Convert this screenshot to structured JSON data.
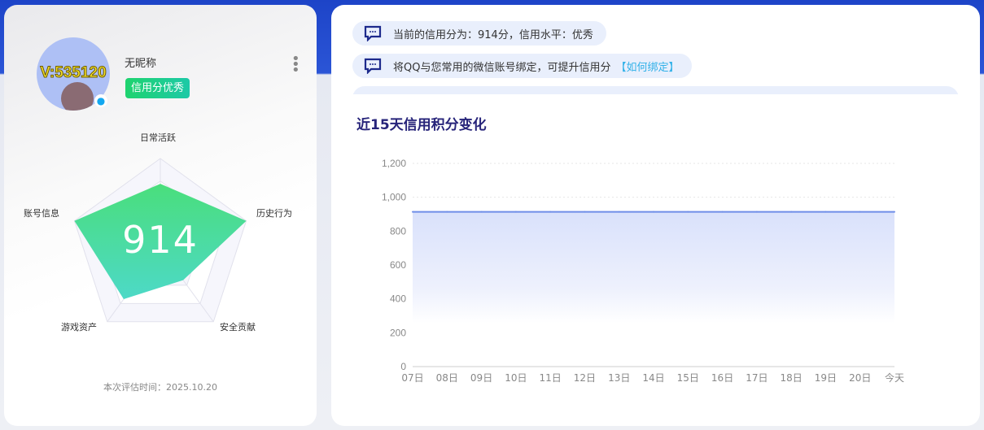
{
  "profile": {
    "avatar_text": "V:535120",
    "nickname": "无昵称",
    "badge": "信用分优秀",
    "more_icon": "more-vertical-icon",
    "qq_icon": "qq-penguin-icon"
  },
  "radar": {
    "score": "914",
    "axes": [
      {
        "label": "日常活跃",
        "value": 0.72
      },
      {
        "label": "历史行为",
        "value": 1.0
      },
      {
        "label": "安全贡献",
        "value": 0.43
      },
      {
        "label": "游戏资产",
        "value": 0.69
      },
      {
        "label": "账号信息",
        "value": 1.0
      }
    ],
    "fill_colors": [
      "#4ade7c",
      "#4dd9c7"
    ]
  },
  "eval_time": "本次评估时间：2025.10.20",
  "messages": [
    {
      "text": "当前的信用分为：914分，信用水平：优秀"
    },
    {
      "text": "将QQ与您常用的微信账号绑定，可提升信用分",
      "link": "【如何绑定】"
    }
  ],
  "chart_data": {
    "type": "area",
    "title": "近15天信用积分变化",
    "categories": [
      "07日",
      "08日",
      "09日",
      "10日",
      "11日",
      "12日",
      "13日",
      "14日",
      "15日",
      "16日",
      "17日",
      "18日",
      "19日",
      "20日",
      "今天"
    ],
    "values": [
      914,
      914,
      914,
      914,
      914,
      914,
      914,
      914,
      914,
      914,
      914,
      914,
      914,
      914,
      914
    ],
    "yticks": [
      "0",
      "200",
      "400",
      "600",
      "800",
      "1,000",
      "1,200"
    ],
    "ylim": [
      0,
      1200
    ],
    "grid": true,
    "line_color": "#6f8ee8"
  }
}
